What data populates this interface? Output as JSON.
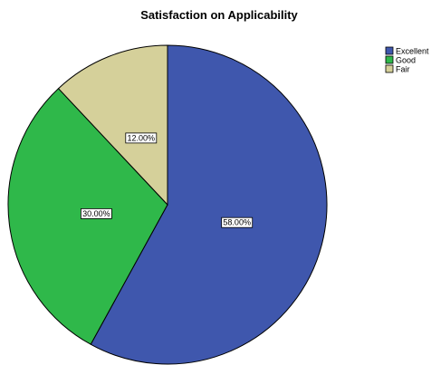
{
  "chart_data": {
    "type": "pie",
    "title": "Satisfaction on Applicability",
    "categories": [
      "Excellent",
      "Good",
      "Fair"
    ],
    "values": [
      58.0,
      30.0,
      12.0
    ],
    "data_labels": [
      "58.00%",
      "30.00%",
      "12.00%"
    ],
    "colors": [
      "#3f57ad",
      "#2fb84a",
      "#d5d09a"
    ],
    "legend": {
      "placement": "top-right",
      "entries": [
        "Excellent",
        "Good",
        "Fair"
      ]
    },
    "start_angle_deg": 0,
    "direction": "clockwise"
  }
}
